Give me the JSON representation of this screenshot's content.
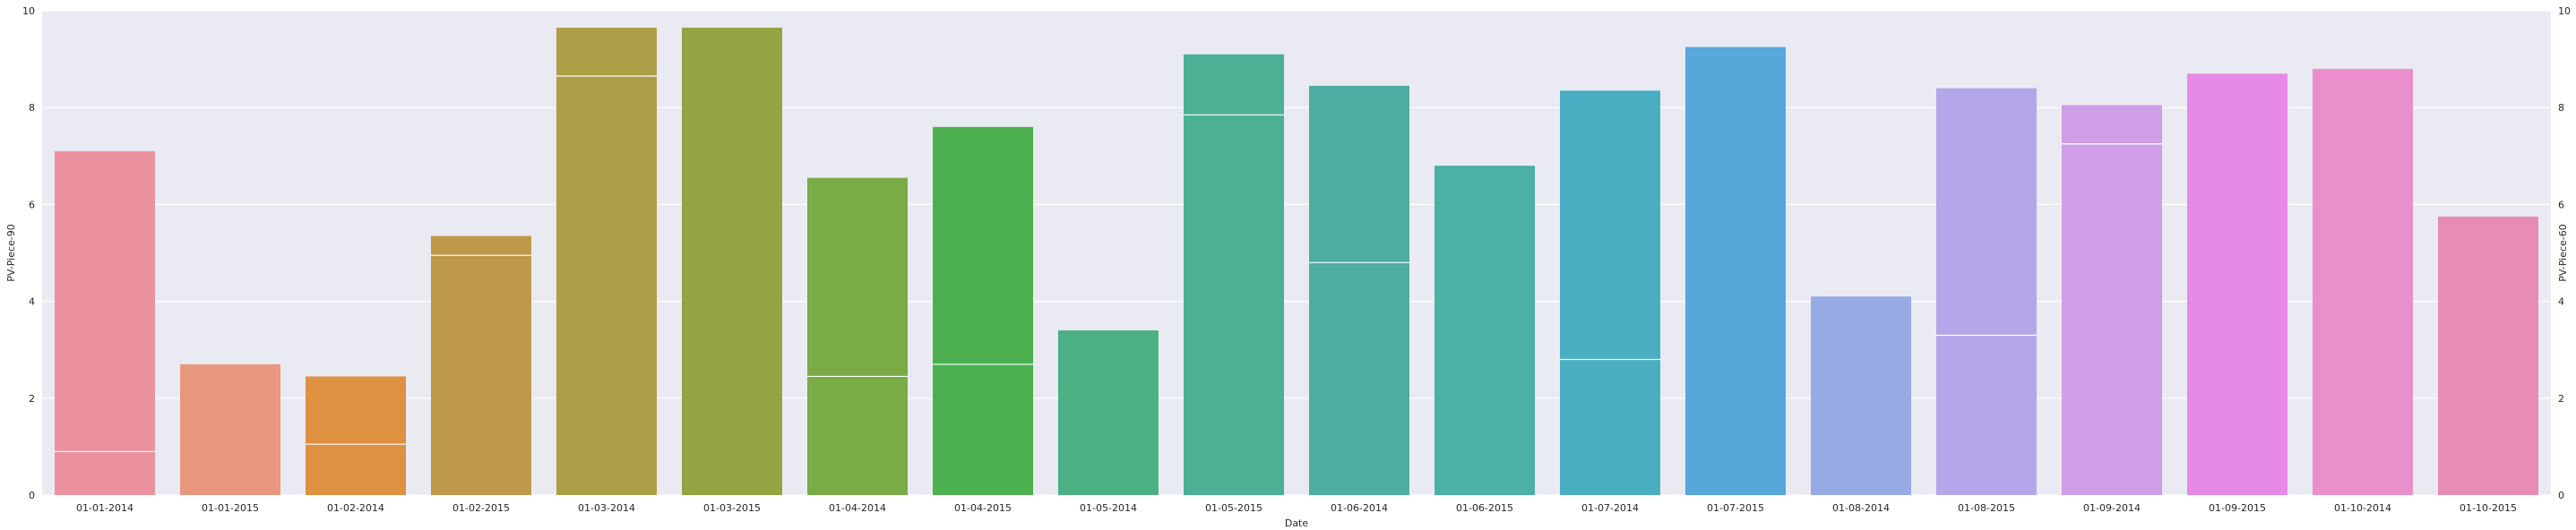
{
  "chart_data": {
    "type": "bar",
    "title": "",
    "xlabel": "Date",
    "ylabel_left": "PV-Piece-90",
    "ylabel_right": "PV-Piece-60",
    "ylim": [
      0,
      10
    ],
    "yticks": [
      "0",
      "2",
      "4",
      "6",
      "8",
      "10"
    ],
    "grid": true,
    "background_color": "#eaeaf2",
    "categories": [
      "01-01-2014",
      "01-01-2015",
      "01-02-2014",
      "01-02-2015",
      "01-03-2014",
      "01-03-2015",
      "01-04-2014",
      "01-04-2015",
      "01-05-2014",
      "01-05-2015",
      "01-06-2014",
      "01-06-2015",
      "01-07-2014",
      "01-07-2015",
      "01-08-2014",
      "01-08-2015",
      "01-09-2014",
      "01-09-2015",
      "01-10-2014",
      "01-10-2015"
    ],
    "values": [
      7.1,
      2.7,
      2.45,
      5.35,
      9.65,
      9.65,
      6.55,
      7.6,
      3.4,
      9.1,
      8.45,
      6.8,
      8.35,
      9.25,
      4.1,
      8.4,
      8.05,
      8.7,
      8.8,
      5.75
    ],
    "overlay_values": [
      0.9,
      null,
      1.05,
      4.95,
      8.65,
      null,
      2.45,
      2.7,
      null,
      7.85,
      4.8,
      null,
      2.8,
      null,
      null,
      3.3,
      7.25,
      null,
      null,
      null
    ],
    "colors": [
      "#eb929e",
      "#e9967f",
      "#dd9141",
      "#bd9949",
      "#ab9e46",
      "#95a343",
      "#7aab47",
      "#4cb050",
      "#4cb085",
      "#4cb095",
      "#4cada0",
      "#4cb0a5",
      "#49aec2",
      "#56a8da",
      "#96aae5",
      "#b5a5e9",
      "#cf9ee7",
      "#e789e6",
      "#ea8fcc",
      "#e78db3"
    ]
  }
}
